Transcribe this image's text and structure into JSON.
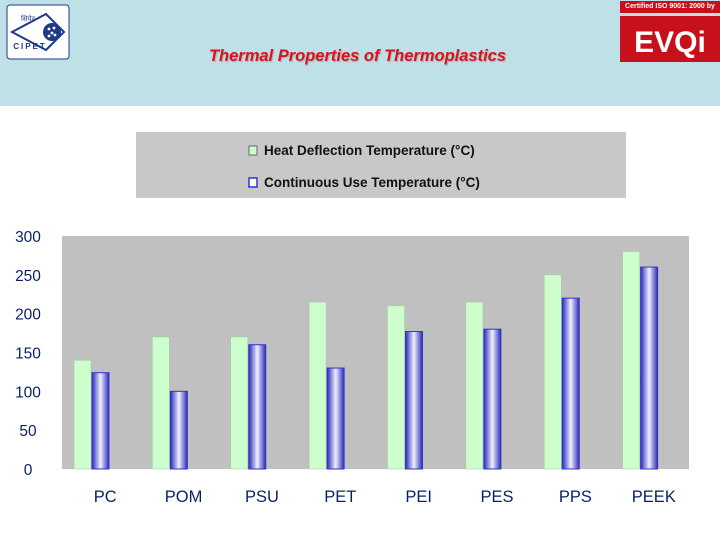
{
  "header": {
    "title": "Thermal Properties of Thermoplastics",
    "cert_text": "Certified ISO 9001: 2000 by",
    "left_logo_top": "सिपेट",
    "left_logo_bottom": "CIPET",
    "right_logo_text": "EVQi"
  },
  "colors": {
    "title": "#e0101a",
    "background": "#bfe0e6",
    "series_1": "#ccffcc",
    "series_2": "#3333cc",
    "plot_area": "#c0c0c0",
    "cert_brand": "#c8101a"
  },
  "chart_data": {
    "type": "bar",
    "categories": [
      "PC",
      "POM",
      "PSU",
      "PET",
      "PEI",
      "PES",
      "PPS",
      "PEEK"
    ],
    "series": [
      {
        "name": "Heat Deflection Temperature (°C)",
        "values": [
          140,
          170,
          170,
          215,
          210,
          215,
          250,
          280
        ]
      },
      {
        "name": "Continuous Use Temperature (°C)",
        "values": [
          124,
          100,
          160,
          130,
          177,
          180,
          220,
          260
        ]
      }
    ],
    "yticks": [
      "300",
      "250",
      "200",
      "150",
      "100",
      "50",
      "0"
    ],
    "ylim": [
      0,
      300
    ],
    "legend_position": "top",
    "grid": false
  }
}
